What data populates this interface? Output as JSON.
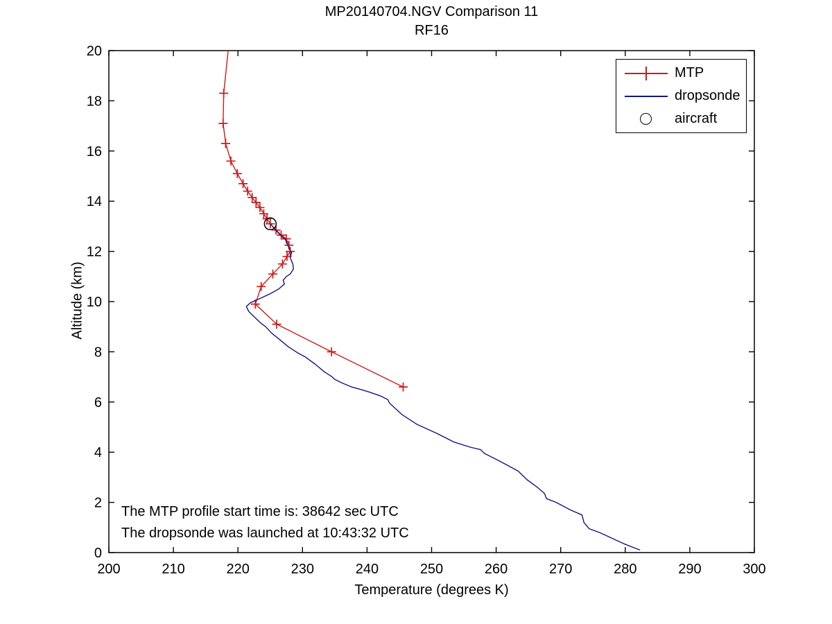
{
  "chart_data": {
    "type": "line",
    "title": "MP20140704.NGV Comparison 11",
    "subtitle": "RF16",
    "xlabel": "Temperature (degrees K)",
    "ylabel": "Altitude (km)",
    "xlim": [
      200,
      300
    ],
    "ylim": [
      0,
      20
    ],
    "x_ticks": [
      200,
      210,
      220,
      230,
      240,
      250,
      260,
      270,
      280,
      290,
      300
    ],
    "y_ticks": [
      0,
      2,
      4,
      6,
      8,
      10,
      12,
      14,
      16,
      18,
      20
    ],
    "grid": false,
    "legend_position": "upper right",
    "annotations": [
      {
        "text": "The MTP profile start time is: 38642 sec UTC",
        "x": 202,
        "y": 1.9
      },
      {
        "text": "The dropsonde was launched at 10:43:32 UTC",
        "x": 202,
        "y": 1.05
      }
    ],
    "series": [
      {
        "name": "MTP",
        "type": "line",
        "color": "#cc1a1a",
        "marker": "plus",
        "lead_points": [
          [
            218.6,
            20.3
          ]
        ],
        "points": [
          [
            217.8,
            18.3
          ],
          [
            217.7,
            17.1
          ],
          [
            218.1,
            16.3
          ],
          [
            218.9,
            15.6
          ],
          [
            219.9,
            15.1
          ],
          [
            220.8,
            14.7
          ],
          [
            221.5,
            14.4
          ],
          [
            222.2,
            14.15
          ],
          [
            222.8,
            13.95
          ],
          [
            223.4,
            13.75
          ],
          [
            224.0,
            13.5
          ],
          [
            224.5,
            13.3
          ],
          [
            225.0,
            13.1
          ],
          [
            225.9,
            12.85
          ],
          [
            226.7,
            12.65
          ],
          [
            227.5,
            12.5
          ],
          [
            227.9,
            12.25
          ],
          [
            228.1,
            12.0
          ],
          [
            227.6,
            11.8
          ],
          [
            226.9,
            11.5
          ],
          [
            225.4,
            11.1
          ],
          [
            223.6,
            10.6
          ],
          [
            222.7,
            9.9
          ],
          [
            226.0,
            9.1
          ],
          [
            234.5,
            8.0
          ],
          [
            245.6,
            6.6
          ]
        ]
      },
      {
        "name": "dropsonde",
        "type": "line",
        "color": "#15157d",
        "marker": "none",
        "points": [
          [
            225.0,
            13.1
          ],
          [
            226.0,
            12.8
          ],
          [
            226.8,
            12.6
          ],
          [
            227.4,
            12.45
          ],
          [
            227.8,
            12.2
          ],
          [
            228.3,
            11.95
          ],
          [
            228.1,
            11.75
          ],
          [
            228.5,
            11.5
          ],
          [
            228.6,
            11.3
          ],
          [
            228.1,
            11.1
          ],
          [
            227.5,
            11.0
          ],
          [
            227.0,
            10.85
          ],
          [
            227.2,
            10.7
          ],
          [
            226.3,
            10.5
          ],
          [
            224.9,
            10.3
          ],
          [
            223.2,
            10.1
          ],
          [
            221.9,
            9.95
          ],
          [
            221.3,
            9.8
          ],
          [
            221.7,
            9.6
          ],
          [
            222.5,
            9.4
          ],
          [
            223.5,
            9.15
          ],
          [
            224.3,
            9.0
          ],
          [
            225.2,
            8.75
          ],
          [
            226.4,
            8.5
          ],
          [
            227.8,
            8.2
          ],
          [
            229.3,
            7.95
          ],
          [
            230.4,
            7.8
          ],
          [
            232.0,
            7.5
          ],
          [
            233.4,
            7.2
          ],
          [
            234.6,
            7.0
          ],
          [
            235.0,
            6.9
          ],
          [
            236.2,
            6.75
          ],
          [
            237.6,
            6.6
          ],
          [
            239.0,
            6.5
          ],
          [
            240.3,
            6.4
          ],
          [
            242.0,
            6.25
          ],
          [
            243.2,
            6.1
          ],
          [
            243.5,
            5.95
          ],
          [
            245.4,
            5.5
          ],
          [
            247.8,
            5.1
          ],
          [
            250.8,
            4.75
          ],
          [
            253.5,
            4.4
          ],
          [
            256.0,
            4.2
          ],
          [
            257.6,
            4.1
          ],
          [
            258.2,
            3.95
          ],
          [
            260.5,
            3.65
          ],
          [
            263.4,
            3.25
          ],
          [
            264.0,
            3.1
          ],
          [
            264.8,
            2.9
          ],
          [
            266.4,
            2.6
          ],
          [
            267.5,
            2.35
          ],
          [
            267.8,
            2.15
          ],
          [
            269.3,
            2.0
          ],
          [
            271.5,
            1.7
          ],
          [
            273.3,
            1.5
          ],
          [
            273.6,
            1.2
          ],
          [
            274.4,
            0.95
          ],
          [
            276.0,
            0.8
          ],
          [
            277.7,
            0.6
          ],
          [
            279.8,
            0.35
          ],
          [
            282.3,
            0.1
          ]
        ]
      },
      {
        "name": "aircraft",
        "type": "scatter",
        "color": "#000000",
        "marker": "open-circle",
        "points": [
          [
            225.0,
            13.1
          ]
        ]
      }
    ]
  }
}
